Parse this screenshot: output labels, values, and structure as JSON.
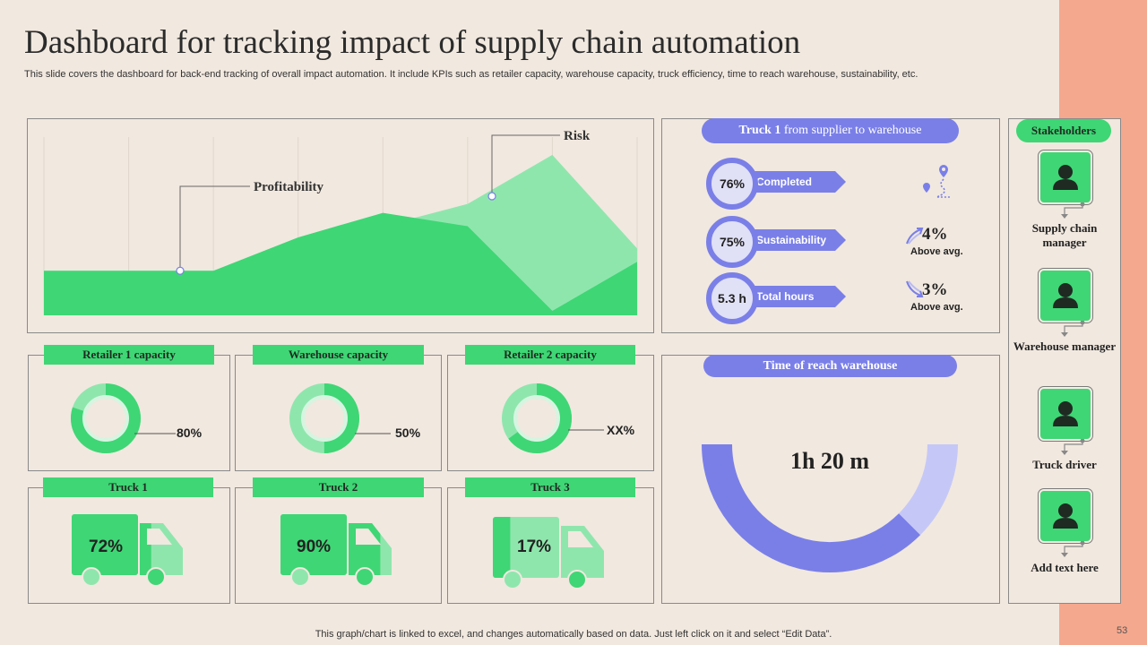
{
  "title": "Dashboard for tracking impact of supply chain automation",
  "subtitle": "This slide covers the dashboard for back-end tracking of overall impact automation. It include KPIs such as retailer capacity, warehouse capacity, truck efficiency, time to reach warehouse, sustainability, etc.",
  "colors": {
    "green": "#3fd675",
    "light_green": "#8fe6ad",
    "blue": "#7a7fe8",
    "light_blue": "#c5c8f7",
    "strip": "#f4a88e"
  },
  "chart_data": [
    {
      "type": "area",
      "title": "",
      "x": [
        0,
        1,
        2,
        3,
        4,
        5,
        6,
        7
      ],
      "series": [
        {
          "name": "Profitability",
          "values": [
            20,
            20,
            20,
            35,
            46,
            40,
            2,
            24
          ]
        },
        {
          "name": "Risk",
          "values": [
            20,
            20,
            20,
            30,
            40,
            50,
            72,
            30
          ]
        }
      ],
      "ylim": [
        0,
        80
      ],
      "annotations": [
        "Profitability",
        "Risk"
      ]
    },
    {
      "type": "pie",
      "title": "Retailer 1 capacity",
      "values": [
        80,
        20
      ],
      "label": "80%"
    },
    {
      "type": "pie",
      "title": "Warehouse capacity",
      "values": [
        50,
        50
      ],
      "label": "50%"
    },
    {
      "type": "pie",
      "title": "Retailer 2 capacity",
      "values": [
        65,
        35
      ],
      "label": "XX%"
    },
    {
      "type": "pie",
      "title": "Time of reach warehouse",
      "values": [
        75,
        25
      ],
      "label": "1h 20 m"
    }
  ],
  "truck_panel": {
    "title_bold": "Truck 1",
    "title_rest": " from supplier to warehouse",
    "kpis": [
      {
        "value": "76%",
        "label": "Completed"
      },
      {
        "value": "75%",
        "label": "Sustainability"
      },
      {
        "value": "5.3 h",
        "label": "Total hours"
      }
    ],
    "changes": [
      {
        "value": "4%",
        "note": "Above avg.",
        "icon": "growth-arrow-icon"
      },
      {
        "value": "3%",
        "note": "Above avg.",
        "icon": "decline-arrow-icon"
      }
    ],
    "route_icon": "route-pin-icon"
  },
  "capacity": [
    {
      "label": "Retailer 1 capacity",
      "value": "80%",
      "fill": 0.8
    },
    {
      "label": "Warehouse capacity",
      "value": "50%",
      "fill": 0.5
    },
    {
      "label": "Retailer 2 capacity",
      "value": "XX%",
      "fill": 0.65
    }
  ],
  "trucks": [
    {
      "label": "Truck 1",
      "value": "72%",
      "fill": 0.72
    },
    {
      "label": "Truck 2",
      "value": "90%",
      "fill": 0.9
    },
    {
      "label": "Truck 3",
      "value": "17%",
      "fill": 0.17
    }
  ],
  "time_panel": {
    "title": "Time of reach warehouse",
    "value": "1h 20 m",
    "fill": 0.75
  },
  "stakeholders": {
    "title": "Stakeholders",
    "people": [
      "Supply chain manager",
      "Warehouse manager",
      "Truck driver",
      "Add text here"
    ]
  },
  "footer": "This graph/chart is linked to excel,  and changes automatically based on data. Just left click on it and select “Edit Data”.",
  "page_number": "53"
}
